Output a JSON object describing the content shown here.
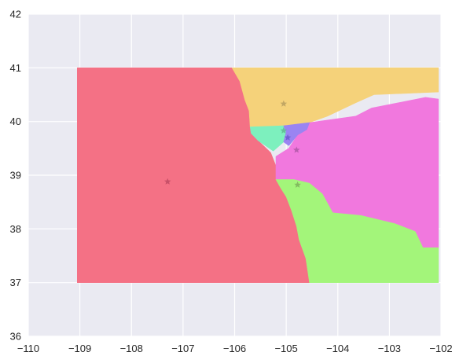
{
  "chart_data": {
    "type": "map",
    "title": "",
    "xlabel": "",
    "ylabel": "",
    "xlim": [
      -110,
      -102
    ],
    "ylim": [
      36,
      42
    ],
    "grid": true,
    "background": "#eaeaf2",
    "x_ticks": [
      -110,
      -109,
      -108,
      -107,
      -106,
      -105,
      -104,
      -103,
      -102
    ],
    "y_ticks": [
      36,
      37,
      38,
      39,
      40,
      41,
      42
    ],
    "x_tick_labels": [
      "−110",
      "−109",
      "−108",
      "−107",
      "−106",
      "−105",
      "−104",
      "−103",
      "−102"
    ],
    "y_tick_labels": [
      "36",
      "37",
      "38",
      "39",
      "40",
      "41",
      "42"
    ],
    "regions": [
      {
        "color": "#f47185",
        "points": [
          [
            -109.05,
            41.0
          ],
          [
            -106.05,
            41.0
          ],
          [
            -105.9,
            40.75
          ],
          [
            -105.8,
            40.4
          ],
          [
            -105.72,
            40.2
          ],
          [
            -105.68,
            39.9
          ],
          [
            -105.55,
            39.65
          ],
          [
            -105.3,
            39.42
          ],
          [
            -105.15,
            39.05
          ],
          [
            -105.0,
            38.7
          ],
          [
            -104.9,
            38.35
          ],
          [
            -104.8,
            38.05
          ],
          [
            -104.75,
            37.8
          ],
          [
            -104.62,
            37.45
          ],
          [
            -104.55,
            37.0
          ],
          [
            -109.05,
            37.0
          ]
        ]
      },
      {
        "color": "#f5d27a",
        "points": [
          [
            -106.05,
            41.0
          ],
          [
            -102.05,
            41.0
          ],
          [
            -102.05,
            40.55
          ],
          [
            -103.3,
            40.5
          ],
          [
            -103.65,
            40.35
          ],
          [
            -104.2,
            40.1
          ],
          [
            -104.55,
            39.98
          ],
          [
            -104.7,
            39.95
          ],
          [
            -105.05,
            39.92
          ],
          [
            -105.7,
            39.9
          ],
          [
            -105.72,
            40.2
          ],
          [
            -105.8,
            40.4
          ],
          [
            -105.9,
            40.75
          ]
        ]
      },
      {
        "color": "#f178de",
        "points": [
          [
            -104.55,
            39.98
          ],
          [
            -103.65,
            40.1
          ],
          [
            -103.35,
            40.25
          ],
          [
            -102.3,
            40.45
          ],
          [
            -102.05,
            40.42
          ],
          [
            -102.05,
            37.65
          ],
          [
            -102.35,
            37.65
          ],
          [
            -102.5,
            37.95
          ],
          [
            -102.9,
            38.1
          ],
          [
            -103.55,
            38.25
          ],
          [
            -104.1,
            38.3
          ],
          [
            -104.3,
            38.65
          ],
          [
            -104.55,
            38.85
          ],
          [
            -104.85,
            38.92
          ],
          [
            -105.2,
            38.92
          ],
          [
            -105.2,
            39.35
          ],
          [
            -104.95,
            39.5
          ],
          [
            -104.78,
            39.75
          ],
          [
            -104.6,
            39.85
          ]
        ]
      },
      {
        "color": "#7df0be",
        "points": [
          [
            -105.7,
            39.9
          ],
          [
            -105.05,
            39.92
          ],
          [
            -105.0,
            39.8
          ],
          [
            -105.05,
            39.62
          ],
          [
            -105.25,
            39.45
          ],
          [
            -105.55,
            39.65
          ],
          [
            -105.68,
            39.78
          ]
        ]
      },
      {
        "color": "#9a84f2",
        "points": [
          [
            -105.05,
            39.92
          ],
          [
            -104.55,
            39.98
          ],
          [
            -104.6,
            39.85
          ],
          [
            -104.78,
            39.75
          ],
          [
            -104.95,
            39.55
          ],
          [
            -105.05,
            39.62
          ],
          [
            -105.0,
            39.8
          ]
        ]
      },
      {
        "color": "#a3f57a",
        "points": [
          [
            -104.55,
            37.0
          ],
          [
            -102.05,
            37.0
          ],
          [
            -102.05,
            37.65
          ],
          [
            -102.35,
            37.65
          ],
          [
            -102.5,
            37.95
          ],
          [
            -102.9,
            38.1
          ],
          [
            -103.55,
            38.25
          ],
          [
            -104.1,
            38.3
          ],
          [
            -104.3,
            38.65
          ],
          [
            -104.55,
            38.85
          ],
          [
            -104.85,
            38.92
          ],
          [
            -105.2,
            38.92
          ],
          [
            -105.1,
            38.75
          ],
          [
            -105.0,
            38.6
          ],
          [
            -104.9,
            38.35
          ],
          [
            -104.8,
            38.05
          ],
          [
            -104.75,
            37.8
          ],
          [
            -104.62,
            37.45
          ]
        ]
      }
    ],
    "markers": [
      {
        "x": -107.3,
        "y": 38.88,
        "color": "#c04a63"
      },
      {
        "x": -105.05,
        "y": 40.33,
        "color": "#b8a060"
      },
      {
        "x": -105.05,
        "y": 39.83,
        "color": "#5fb890"
      },
      {
        "x": -104.97,
        "y": 39.7,
        "color": "#6a5ad0"
      },
      {
        "x": -104.8,
        "y": 39.47,
        "color": "#b058a8"
      },
      {
        "x": -104.78,
        "y": 38.82,
        "color": "#7cb05a"
      }
    ]
  }
}
